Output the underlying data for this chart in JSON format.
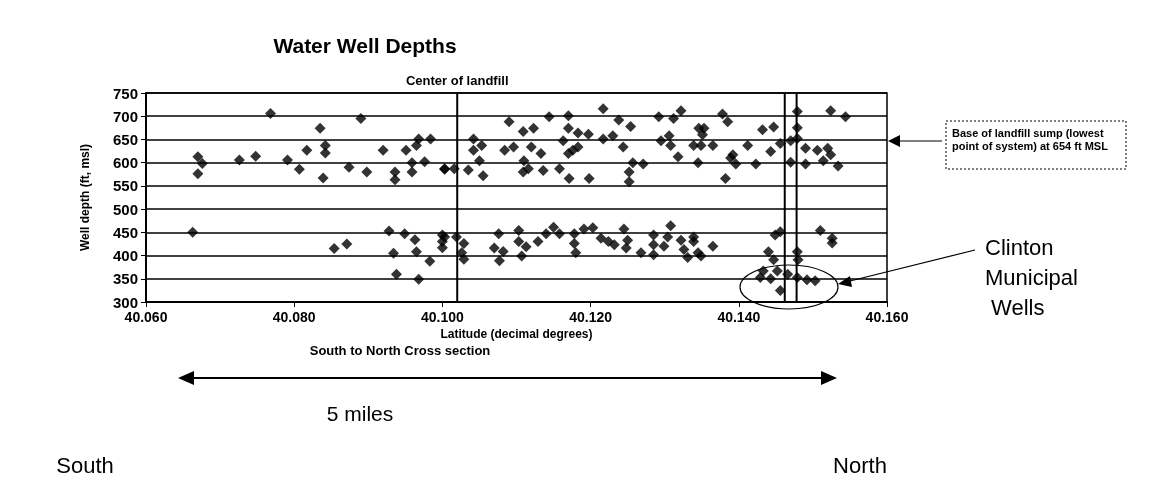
{
  "chart_data": {
    "type": "scatter",
    "title": "Water Well Depths",
    "xlabel": "Latitude (decimal degrees)",
    "ylabel": "Well depth (ft, msl)",
    "x": [
      40.0768,
      40.089,
      40.0835,
      40.0968,
      40.0984,
      40.0817,
      40.0842,
      40.0842,
      40.092,
      40.0951,
      40.0965,
      40.067,
      40.0676,
      40.067,
      40.0726,
      40.0748,
      40.0791,
      40.0807,
      40.0839,
      40.0874,
      40.0898,
      40.0936,
      40.0936,
      40.0959,
      40.0959,
      40.0976,
      40.1003,
      40.0663,
      40.0854,
      40.0871,
      40.0928,
      40.0949,
      40.0963,
      40.1,
      40.1,
      40.1,
      40.0934,
      40.0965,
      40.0983,
      40.0938,
      40.0968,
      40.1003,
      40.1016,
      40.1035,
      40.1055,
      40.1042,
      40.1042,
      40.1053,
      40.105,
      40.109,
      40.1109,
      40.1123,
      40.1084,
      40.1096,
      40.111,
      40.1116,
      40.1109,
      40.112,
      40.1133,
      40.1136,
      40.1144,
      40.117,
      40.117,
      40.1183,
      40.1197,
      40.1163,
      40.1176,
      40.1183,
      40.117,
      40.1158,
      40.1171,
      40.1198,
      40.1217,
      40.1217,
      40.123,
      40.1238,
      40.1244,
      40.1254,
      40.1257,
      40.1252,
      40.1252,
      40.1271,
      40.1292,
      40.1295,
      40.1308,
      40.1318,
      40.1306,
      40.1322,
      40.1312,
      40.1339,
      40.1346,
      40.1003,
      40.1019,
      40.1029,
      40.1026,
      40.1029,
      40.1076,
      40.107,
      40.1082,
      40.1077,
      40.1103,
      40.1103,
      40.1113,
      40.1107,
      40.1129,
      40.115,
      40.1158,
      40.114,
      40.1178,
      40.1178,
      40.118,
      40.1191,
      40.1203,
      40.1214,
      40.1224,
      40.1232,
      40.1245,
      40.125,
      40.1248,
      40.1268,
      40.1285,
      40.1285,
      40.1285,
      40.1308,
      40.1304,
      40.1299,
      40.1322,
      40.1326,
      40.1331,
      40.1339,
      40.1378,
      40.1385,
      40.1353,
      40.1351,
      40.1349,
      40.1365,
      40.1345,
      40.1392,
      40.1396,
      40.1389,
      40.1412,
      40.1382,
      40.1423,
      40.1432,
      40.1447,
      40.1443,
      40.1456,
      40.147,
      40.147,
      40.1479,
      40.1479,
      40.1479,
      40.149,
      40.149,
      40.1506,
      40.152,
      40.1524,
      40.1514,
      40.1524,
      40.1544,
      40.1534,
      40.1339,
      40.1365,
      40.1345,
      40.1349,
      40.1456,
      40.1449,
      40.144,
      40.1479,
      40.148,
      40.151,
      40.1526,
      40.1526,
      40.1433,
      40.1452,
      40.1466,
      40.1479,
      40.1492,
      40.1503,
      40.1429,
      40.1443,
      40.1456,
      40.1447
    ],
    "values": [
      706,
      695,
      674,
      651,
      651,
      627,
      637,
      621,
      627,
      627,
      637,
      613,
      598,
      576,
      606,
      614,
      606,
      586,
      567,
      590,
      580,
      580,
      563,
      600,
      580,
      602,
      586,
      450,
      415,
      425,
      453,
      447,
      434,
      444,
      430,
      417,
      405,
      408,
      388,
      360,
      349,
      587,
      587,
      584,
      572,
      651,
      627,
      637,
      604,
      688,
      667,
      674,
      627,
      634,
      604,
      587,
      580,
      634,
      620,
      583,
      699,
      701,
      674,
      664,
      661,
      647,
      627,
      634,
      620,
      587,
      566,
      566,
      716,
      651,
      658,
      692,
      634,
      678,
      600,
      580,
      559,
      597,
      699,
      647,
      637,
      613,
      658,
      712,
      695,
      637,
      674,
      440,
      440,
      426,
      406,
      392,
      447,
      416,
      409,
      389,
      454,
      430,
      419,
      399,
      430,
      461,
      447,
      447,
      447,
      426,
      406,
      457,
      460,
      437,
      430,
      423,
      457,
      433,
      416,
      406,
      444,
      423,
      402,
      464,
      440,
      420,
      433,
      413,
      396,
      440,
      705,
      688,
      674,
      660,
      637,
      637,
      600,
      617,
      597,
      610,
      637,
      566,
      597,
      671,
      677,
      624,
      641,
      647,
      601,
      710,
      675,
      652,
      631,
      597,
      627,
      631,
      617,
      604,
      712,
      699,
      593,
      430,
      420,
      406,
      399,
      451,
      444,
      408,
      408,
      391,
      454,
      437,
      427,
      367,
      367,
      360,
      353,
      348,
      346,
      353,
      350,
      325,
      391
    ],
    "color": "#000000",
    "marker": "diamond",
    "xlim": [
      40.06,
      40.16
    ],
    "xticks": [
      {
        "value": 40.06,
        "label": "40.060"
      },
      {
        "value": 40.08,
        "label": "40.080"
      },
      {
        "value": 40.1,
        "label": "40.100"
      },
      {
        "value": 40.12,
        "label": "40.120"
      },
      {
        "value": 40.14,
        "label": "40.140"
      },
      {
        "value": 40.16,
        "label": "40.160"
      }
    ],
    "ylim": [
      300,
      750
    ],
    "yticks": [
      300,
      350,
      400,
      450,
      500,
      550,
      600,
      650,
      700,
      750
    ],
    "grid": "y",
    "ref_lines": [
      {
        "axis": "x",
        "value": 40.102,
        "label": "Center of landfill"
      },
      {
        "axis": "x",
        "value": 40.1462,
        "label": null
      },
      {
        "axis": "x",
        "value": 40.1478,
        "label": null
      }
    ],
    "annotations": [
      "Base of landfill sump (lowest point of system) at 654 ft MSL",
      "Clinton Municipal Wells",
      "South to North Cross section",
      "5 miles",
      "South",
      "North"
    ]
  }
}
